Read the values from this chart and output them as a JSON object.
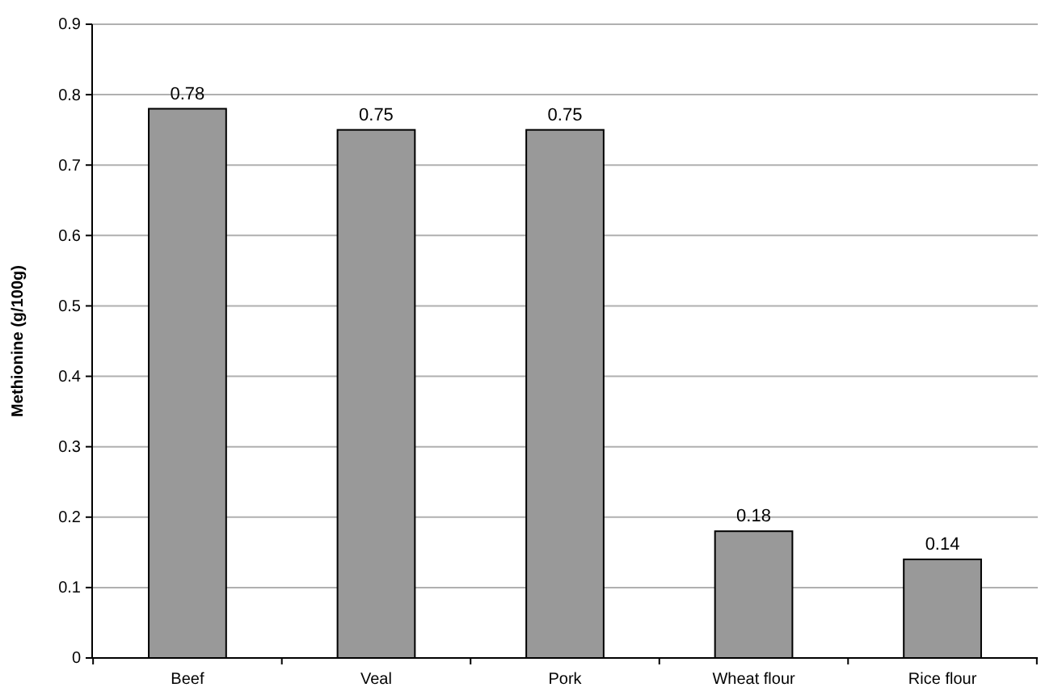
{
  "chart_data": {
    "type": "bar",
    "ylabel": "Methionine (g/100g)",
    "categories": [
      "Beef",
      "Veal",
      "Pork",
      "Wheat flour",
      "Rice flour"
    ],
    "values": [
      0.78,
      0.75,
      0.75,
      0.18,
      0.14
    ],
    "color": "#999999",
    "ylim": [
      0,
      0.9
    ],
    "yticks": [
      0,
      0.1,
      0.2,
      0.3,
      0.4,
      0.5,
      0.6,
      0.7,
      0.8,
      0.9
    ],
    "grid": "y",
    "data_labels": true
  }
}
